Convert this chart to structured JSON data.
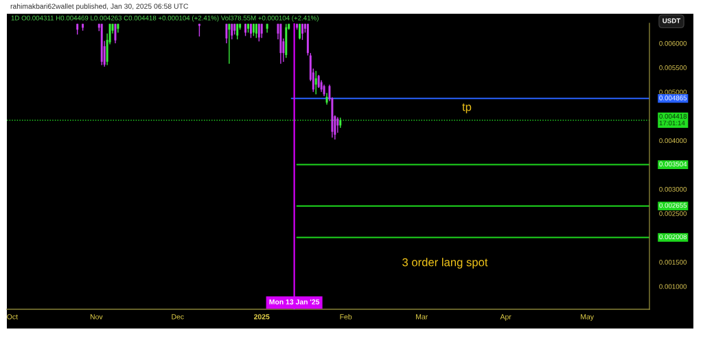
{
  "chart_data": {
    "type": "candlestick",
    "ylabel": "USDT",
    "annotations": [
      "rahimakbari62wallet published, Jan 30, 2025 06:58 UTC",
      "1D O0.004311 H0.004469 L0.004263 C0.004418 +0.000104 (+2.41%) Vol378.55M +0.000104 (+2.41%)",
      "tp",
      "3 order lang spot"
    ],
    "x": [
      "2024-10-25",
      "2024-10-27",
      "2024-11-02",
      "2024-11-03",
      "2024-11-04",
      "2024-11-05",
      "2024-11-06",
      "2024-11-07",
      "2024-11-08",
      "2024-11-09",
      "2024-12-09",
      "2024-12-19",
      "2024-12-20",
      "2024-12-21",
      "2024-12-22",
      "2024-12-23",
      "2024-12-24",
      "2024-12-26",
      "2024-12-27",
      "2024-12-28",
      "2024-12-29",
      "2024-12-30",
      "2024-12-31",
      "2025-01-01",
      "2025-01-03",
      "2025-01-07",
      "2025-01-08",
      "2025-01-09",
      "2025-01-10",
      "2025-01-11",
      "2025-01-14",
      "2025-01-15",
      "2025-01-16",
      "2025-01-17",
      "2025-01-18",
      "2025-01-19",
      "2025-01-20",
      "2025-01-21",
      "2025-01-22",
      "2025-01-23",
      "2025-01-24",
      "2025-01-25",
      "2025-01-26",
      "2025-01-27",
      "2025-01-28",
      "2025-01-29",
      "2025-01-30"
    ],
    "ohlc": [
      [
        0.0064,
        0.0064,
        0.00618,
        0.00628
      ],
      [
        0.0064,
        0.0064,
        0.00626,
        0.00632
      ],
      [
        0.0064,
        0.0064,
        0.00625,
        0.00632
      ],
      [
        0.0064,
        0.0064,
        0.00555,
        0.00562
      ],
      [
        0.00594,
        0.00605,
        0.00552,
        0.00556
      ],
      [
        0.00562,
        0.0062,
        0.00555,
        0.00607
      ],
      [
        0.00602,
        0.0064,
        0.00598,
        0.0064
      ],
      [
        0.00626,
        0.0064,
        0.0062,
        0.0064
      ],
      [
        0.0064,
        0.0064,
        0.006,
        0.00606
      ],
      [
        0.0063,
        0.0064,
        0.00622,
        0.0064
      ],
      [
        0.0064,
        0.0064,
        0.00614,
        0.00636
      ],
      [
        0.0064,
        0.0064,
        0.006,
        0.0061
      ],
      [
        0.00628,
        0.0064,
        0.00558,
        0.0064
      ],
      [
        0.0064,
        0.0064,
        0.00608,
        0.00616
      ],
      [
        0.0064,
        0.0064,
        0.00618,
        0.00626
      ],
      [
        0.00616,
        0.0064,
        0.00608,
        0.0064
      ],
      [
        0.00632,
        0.0064,
        0.00628,
        0.0064
      ],
      [
        0.0064,
        0.0064,
        0.00615,
        0.00622
      ],
      [
        0.0063,
        0.0064,
        0.00622,
        0.0064
      ],
      [
        0.0064,
        0.0064,
        0.00611,
        0.0062
      ],
      [
        0.00622,
        0.0064,
        0.00615,
        0.0064
      ],
      [
        0.0062,
        0.0064,
        0.00611,
        0.0064
      ],
      [
        0.0064,
        0.0064,
        0.00604,
        0.00612
      ],
      [
        0.0064,
        0.0064,
        0.00611,
        0.0062
      ],
      [
        0.0063,
        0.0064,
        0.00622,
        0.0064
      ],
      [
        0.0064,
        0.0064,
        0.00608,
        0.0062
      ],
      [
        0.0064,
        0.0064,
        0.00558,
        0.0058
      ],
      [
        0.00604,
        0.0061,
        0.00562,
        0.0058
      ],
      [
        0.00576,
        0.0064,
        0.0057,
        0.00633
      ],
      [
        0.0063,
        0.0064,
        0.00628,
        0.0064
      ],
      [
        0.0064,
        0.0064,
        0.00628,
        0.00632
      ],
      [
        0.0061,
        0.0064,
        0.00608,
        0.0064
      ],
      [
        0.0064,
        0.0064,
        0.00607,
        0.0062
      ],
      [
        0.0064,
        0.0064,
        0.00622,
        0.0063
      ],
      [
        0.0064,
        0.0064,
        0.00575,
        0.0058
      ],
      [
        0.00575,
        0.0058,
        0.00522,
        0.00525
      ],
      [
        0.0054,
        0.00548,
        0.005,
        0.00505
      ],
      [
        0.00515,
        0.00543,
        0.00495,
        0.00528
      ],
      [
        0.00533,
        0.00535,
        0.00508,
        0.0051
      ],
      [
        0.0052,
        0.00524,
        0.005,
        0.00505
      ],
      [
        0.00512,
        0.00515,
        0.00491,
        0.00495
      ],
      [
        0.00478,
        0.00498,
        0.00474,
        0.0049
      ],
      [
        0.00512,
        0.00515,
        0.00481,
        0.00485
      ],
      [
        0.00487,
        0.00489,
        0.00406,
        0.00418
      ],
      [
        0.0045,
        0.00452,
        0.00402,
        0.00412
      ],
      [
        0.00445,
        0.00448,
        0.00416,
        0.00431
      ],
      [
        0.004311,
        0.004469,
        0.004263,
        0.004418
      ]
    ],
    "colors": [
      "#c83cf0",
      "#c83cf0",
      "#c83cf0",
      "#c83cf0",
      "#c83cf0",
      "#3cf03c",
      "#3cf03c",
      "#3cf03c",
      "#c83cf0",
      "#3cf03c",
      "#c83cf0",
      "#c83cf0",
      "#3cf03c",
      "#c83cf0",
      "#c83cf0",
      "#3cf03c",
      "#3cf03c",
      "#c83cf0",
      "#3cf03c",
      "#c83cf0",
      "#3cf03c",
      "#3cf03c",
      "#c83cf0",
      "#c83cf0",
      "#3cf03c",
      "#c83cf0",
      "#c83cf0",
      "#c83cf0",
      "#3cf03c",
      "#3cf03c",
      "#c83cf0",
      "#3cf03c",
      "#c83cf0",
      "#c83cf0",
      "#c83cf0",
      "#c83cf0",
      "#c83cf0",
      "#3cf03c",
      "#c83cf0",
      "#c83cf0",
      "#c83cf0",
      "#3cf03c",
      "#c83cf0",
      "#c83cf0",
      "#c83cf0",
      "#c83cf0",
      "#3cf03c"
    ],
    "series": [
      {
        "type": "line",
        "color": "#2962ff",
        "x": [
          "2025-01-12",
          "2025-05-24"
        ],
        "values": [
          0.004865,
          0.004865
        ],
        "value_labels": [
          null,
          "0.004865"
        ]
      },
      {
        "type": "line",
        "color": "#1ed81e",
        "x": [
          "2025-01-14",
          "2025-05-24"
        ],
        "values": [
          0.003504,
          0.003504
        ],
        "value_labels": [
          null,
          "0.003504"
        ]
      },
      {
        "type": "line",
        "color": "#1ed81e",
        "x": [
          "2025-01-14",
          "2025-05-24"
        ],
        "values": [
          0.002655,
          0.002655
        ],
        "value_labels": [
          null,
          "0.002655"
        ]
      },
      {
        "type": "line",
        "color": "#1ed81e",
        "x": [
          "2025-01-14",
          "2025-05-24"
        ],
        "values": [
          0.002008,
          0.002008
        ],
        "value_labels": [
          null,
          "0.002008"
        ]
      }
    ],
    "ref_lines": [
      {
        "axis": "y",
        "value": 0.004418,
        "label": "0.004418\n17:01:14",
        "color": "#22dd22",
        "line_style": "dotted"
      },
      {
        "axis": "x",
        "value": "2025-01-13",
        "label": "Mon 13 Jan '25",
        "color": "#d500f9"
      }
    ],
    "xlim": [
      "2024-09-29",
      "2025-05-24"
    ],
    "xticks": [
      {
        "value": "2024-10-01",
        "label": "Oct"
      },
      {
        "value": "2024-11-01",
        "label": "Nov"
      },
      {
        "value": "2024-12-01",
        "label": "Dec"
      },
      {
        "value": "2025-01-01",
        "label": "2025"
      },
      {
        "value": "2025-02-01",
        "label": "Feb"
      },
      {
        "value": "2025-03-01",
        "label": "Mar"
      },
      {
        "value": "2025-04-01",
        "label": "Apr"
      },
      {
        "value": "2025-05-01",
        "label": "May"
      }
    ],
    "ylim": [
      0.00053,
      0.00641
    ],
    "yticks": [
      {
        "value": 0.001,
        "label": "0.001000"
      },
      {
        "value": 0.0015,
        "label": "0.001500"
      },
      {
        "value": 0.0025,
        "label": "0.002500"
      },
      {
        "value": 0.003,
        "label": "0.003000"
      },
      {
        "value": 0.004,
        "label": "0.004000"
      },
      {
        "value": 0.005,
        "label": "0.005000"
      },
      {
        "value": 0.0055,
        "label": "0.005500"
      },
      {
        "value": 0.006,
        "label": "0.006000"
      }
    ]
  }
}
